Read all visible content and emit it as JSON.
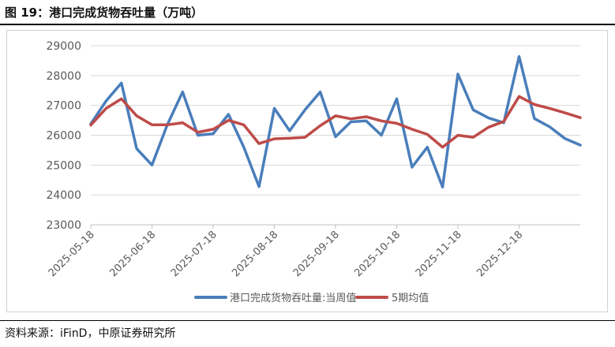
{
  "figure": {
    "title": "图 19：港口完成货物吞吐量（万吨）",
    "source": "资料来源：iFinD，中原证券研究所"
  },
  "chart_data": {
    "type": "line",
    "title": "",
    "xlabel": "",
    "ylabel": "",
    "ylim": [
      23000,
      29000
    ],
    "yticks": [
      23000,
      24000,
      25000,
      26000,
      27000,
      28000,
      29000
    ],
    "xtick_labels": [
      "2025-05-18",
      "2025-06-18",
      "2025-07-18",
      "2025-08-18",
      "2025-09-18",
      "2025-10-18",
      "2025-11-18",
      "2025-12-18"
    ],
    "xtick_indices": [
      0,
      4,
      8,
      12,
      16,
      20,
      24,
      28
    ],
    "grid": true,
    "legend_position": "bottom",
    "series": [
      {
        "name": "港口完成货物吞吐量:当周值",
        "color": "#4a7ebb",
        "values": [
          26380,
          27150,
          27750,
          25550,
          25000,
          26350,
          27450,
          26000,
          26050,
          26700,
          25600,
          24280,
          26900,
          26150,
          26850,
          27450,
          25950,
          26450,
          26480,
          26000,
          27220,
          24930,
          25600,
          24260,
          28050,
          26850,
          26580,
          26420,
          28640,
          26560,
          26280,
          25890,
          25670
        ]
      },
      {
        "name": "5期均值",
        "color": "#be4b48",
        "values": [
          26340,
          26900,
          27220,
          26650,
          26350,
          26350,
          26420,
          26100,
          26200,
          26500,
          26350,
          25720,
          25880,
          25900,
          25930,
          26320,
          26650,
          26550,
          26620,
          26480,
          26400,
          26200,
          26030,
          25600,
          26000,
          25930,
          26270,
          26460,
          27300,
          27030,
          26900,
          26750,
          26590
        ]
      }
    ]
  }
}
